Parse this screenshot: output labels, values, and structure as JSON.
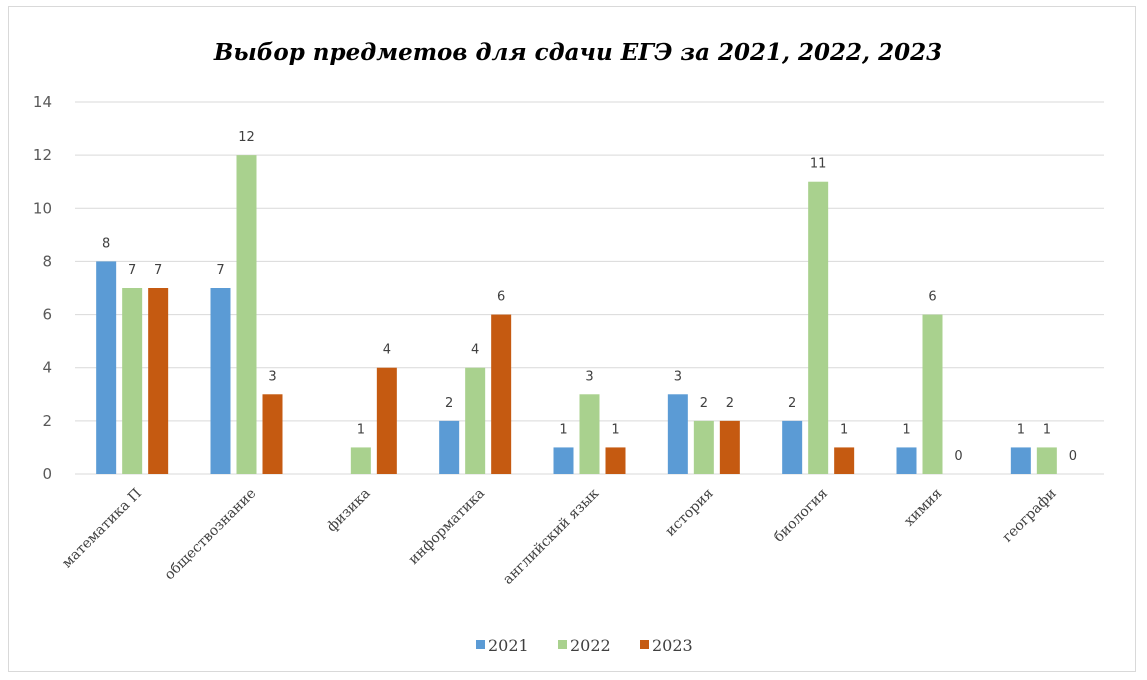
{
  "chart_data": {
    "type": "bar",
    "title": "Выбор предметов для сдачи ЕГЭ за 2021, 2022, 2023",
    "xlabel": "",
    "ylabel": "",
    "ylim": [
      0,
      14
    ],
    "y_ticks": [
      "0",
      "2",
      "4",
      "6",
      "8",
      "10",
      "12",
      "14"
    ],
    "grid": true,
    "legend_position": "bottom",
    "categories": [
      "математика П",
      "обществознание",
      "физика",
      "информатика",
      "английский язык",
      "история",
      "биология",
      "химия",
      "географи"
    ],
    "series": [
      {
        "name": "2021",
        "color": "#5b9bd5",
        "values": [
          8,
          7,
          null,
          2,
          1,
          3,
          2,
          1,
          1
        ],
        "labels": [
          "8",
          "7",
          "",
          "2",
          "1",
          "3",
          "2",
          "1",
          "1"
        ]
      },
      {
        "name": "2022",
        "color": "#a9d18e",
        "values": [
          7,
          12,
          1,
          4,
          3,
          2,
          11,
          6,
          1
        ],
        "labels": [
          "7",
          "12",
          "1",
          "4",
          "3",
          "2",
          "11",
          "6",
          "1"
        ]
      },
      {
        "name": "2023",
        "color": "#c55a11",
        "values": [
          7,
          3,
          4,
          6,
          1,
          2,
          1,
          0,
          0
        ],
        "labels": [
          "7",
          "3",
          "4",
          "6",
          "1",
          "2",
          "1",
          "0",
          "0"
        ]
      }
    ]
  }
}
